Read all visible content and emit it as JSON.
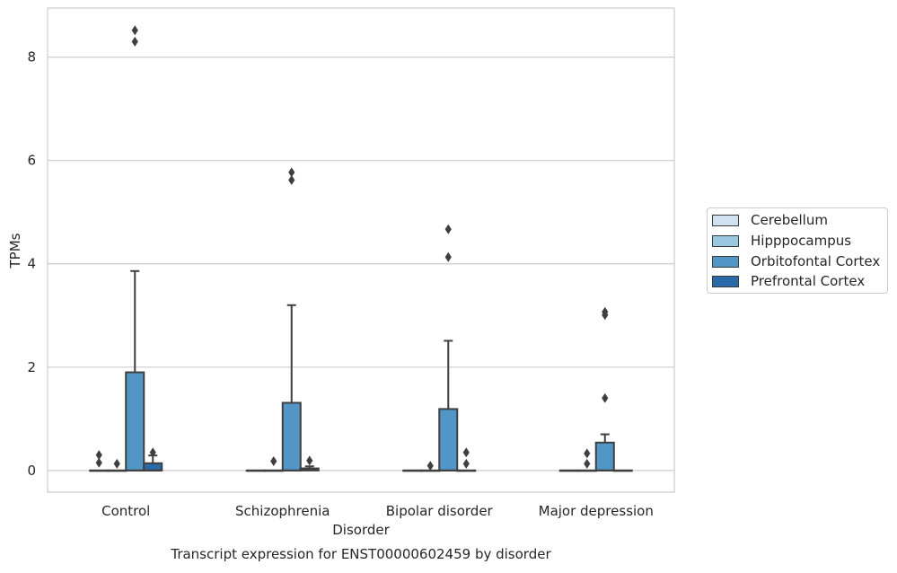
{
  "chart_data": {
    "type": "box",
    "title": "Transcript expression for ENST00000602459 by disorder",
    "xlabel": "Disorder",
    "ylabel": "TPMs",
    "ylim": [
      -0.42,
      8.95
    ],
    "yticks": [
      0,
      2,
      4,
      6,
      8
    ],
    "grid": "horizontal",
    "legend_position": "right",
    "categories": [
      "Control",
      "Schizophrenia",
      "Bipolar disorder",
      "Major depression"
    ],
    "series": [
      {
        "name": "Cerebellum",
        "color": "#d0e1f2",
        "boxes": [
          {
            "q1": 0,
            "median": 0,
            "q3": 0,
            "whisker_low": 0,
            "whisker_high": 0,
            "outliers": [
              0.15,
              0.3
            ]
          },
          {
            "q1": 0,
            "median": 0,
            "q3": 0,
            "whisker_low": 0,
            "whisker_high": 0,
            "outliers": []
          },
          {
            "q1": 0,
            "median": 0,
            "q3": 0,
            "whisker_low": 0,
            "whisker_high": 0,
            "outliers": []
          },
          {
            "q1": 0,
            "median": 0,
            "q3": 0,
            "whisker_low": 0,
            "whisker_high": 0,
            "outliers": []
          }
        ]
      },
      {
        "name": "Hipppocampus",
        "color": "#9ac8e0",
        "boxes": [
          {
            "q1": 0,
            "median": 0,
            "q3": 0,
            "whisker_low": 0,
            "whisker_high": 0,
            "outliers": [
              0.13
            ]
          },
          {
            "q1": 0,
            "median": 0,
            "q3": 0,
            "whisker_low": 0,
            "whisker_high": 0,
            "outliers": [
              0.18
            ]
          },
          {
            "q1": 0,
            "median": 0,
            "q3": 0,
            "whisker_low": 0,
            "whisker_high": 0,
            "outliers": [
              0.09
            ]
          },
          {
            "q1": 0,
            "median": 0,
            "q3": 0,
            "whisker_low": 0,
            "whisker_high": 0,
            "outliers": [
              0.13,
              0.33
            ]
          }
        ]
      },
      {
        "name": "Orbitofontal Cortex",
        "color": "#5296c7",
        "boxes": [
          {
            "q1": 0,
            "median": 0,
            "q3": 1.9,
            "whisker_low": 0,
            "whisker_high": 3.86,
            "outliers": [
              8.3,
              8.52
            ]
          },
          {
            "q1": 0,
            "median": 0,
            "q3": 1.31,
            "whisker_low": 0,
            "whisker_high": 3.2,
            "outliers": [
              5.62,
              5.77
            ]
          },
          {
            "q1": 0,
            "median": 0,
            "q3": 1.19,
            "whisker_low": 0,
            "whisker_high": 2.51,
            "outliers": [
              4.13,
              4.67
            ]
          },
          {
            "q1": 0,
            "median": 0,
            "q3": 0.54,
            "whisker_low": 0,
            "whisker_high": 0.7,
            "outliers": [
              1.4,
              3.01,
              3.07
            ]
          }
        ]
      },
      {
        "name": "Prefrontal Cortex",
        "color": "#2a6aaa",
        "boxes": [
          {
            "q1": 0,
            "median": 0,
            "q3": 0.14,
            "whisker_low": 0,
            "whisker_high": 0.29,
            "outliers": [
              0.35
            ]
          },
          {
            "q1": 0,
            "median": 0.02,
            "q3": 0.04,
            "whisker_low": 0,
            "whisker_high": 0.08,
            "outliers": [
              0.19
            ]
          },
          {
            "q1": 0,
            "median": 0,
            "q3": 0,
            "whisker_low": 0,
            "whisker_high": 0,
            "outliers": [
              0.13,
              0.35
            ]
          },
          {
            "q1": 0,
            "median": 0,
            "q3": 0,
            "whisker_low": 0,
            "whisker_high": 0,
            "outliers": []
          }
        ]
      }
    ]
  }
}
